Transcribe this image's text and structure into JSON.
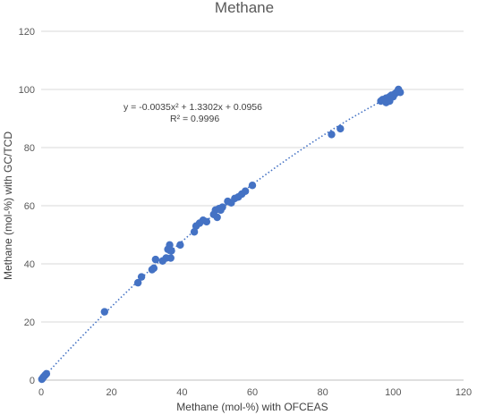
{
  "chart_data": {
    "type": "scatter",
    "title": "Methane",
    "xlabel": "Methane (mol-%) with OFCEAS",
    "ylabel": "Methane (mol-%)  with GC/TCD",
    "xlim": [
      0,
      120
    ],
    "ylim": [
      0,
      120
    ],
    "x_ticks": [
      "0",
      "20",
      "40",
      "60",
      "80",
      "100",
      "120"
    ],
    "y_ticks": [
      "0",
      "20",
      "40",
      "60",
      "80",
      "100",
      "120"
    ],
    "grid": "horizontal",
    "legend": "none",
    "marker_color": "#4472C4",
    "trendline": {
      "type": "polynomial",
      "style": "dotted",
      "equation": "y = -0.0035x² + 1.3302x + 0.0956",
      "r_squared": "R² = 0.9996",
      "coefficients": [
        -0.0035,
        1.3302,
        0.0956
      ],
      "x_range": [
        0,
        102
      ]
    },
    "points": [
      {
        "x": 0.2,
        "y": 0.3
      },
      {
        "x": 0.4,
        "y": 0.6
      },
      {
        "x": 0.6,
        "y": 1.0
      },
      {
        "x": 0.9,
        "y": 1.4
      },
      {
        "x": 1.2,
        "y": 1.8
      },
      {
        "x": 1.5,
        "y": 2.2
      },
      {
        "x": 18.0,
        "y": 23.5
      },
      {
        "x": 27.5,
        "y": 33.5
      },
      {
        "x": 28.5,
        "y": 35.5
      },
      {
        "x": 31.5,
        "y": 38.0
      },
      {
        "x": 32.0,
        "y": 38.5
      },
      {
        "x": 32.5,
        "y": 41.5
      },
      {
        "x": 34.5,
        "y": 41.0
      },
      {
        "x": 35.5,
        "y": 42.0
      },
      {
        "x": 36.0,
        "y": 45.0
      },
      {
        "x": 36.5,
        "y": 46.5
      },
      {
        "x": 37.0,
        "y": 44.5
      },
      {
        "x": 36.8,
        "y": 42.0
      },
      {
        "x": 39.5,
        "y": 46.5
      },
      {
        "x": 43.5,
        "y": 51.0
      },
      {
        "x": 44.0,
        "y": 53.0
      },
      {
        "x": 45.0,
        "y": 54.0
      },
      {
        "x": 46.0,
        "y": 55.0
      },
      {
        "x": 47.0,
        "y": 54.5
      },
      {
        "x": 49.0,
        "y": 57.0
      },
      {
        "x": 49.5,
        "y": 58.5
      },
      {
        "x": 50.0,
        "y": 56.0
      },
      {
        "x": 50.5,
        "y": 59.0
      },
      {
        "x": 51.0,
        "y": 58.5
      },
      {
        "x": 51.5,
        "y": 59.5
      },
      {
        "x": 53.0,
        "y": 61.5
      },
      {
        "x": 54.0,
        "y": 61.0
      },
      {
        "x": 55.0,
        "y": 62.5
      },
      {
        "x": 56.0,
        "y": 63.0
      },
      {
        "x": 57.0,
        "y": 64.0
      },
      {
        "x": 58.0,
        "y": 65.0
      },
      {
        "x": 60.0,
        "y": 67.0
      },
      {
        "x": 82.5,
        "y": 84.5
      },
      {
        "x": 85.0,
        "y": 86.5
      },
      {
        "x": 96.5,
        "y": 96.0
      },
      {
        "x": 97.0,
        "y": 96.5
      },
      {
        "x": 97.5,
        "y": 96.5
      },
      {
        "x": 98.0,
        "y": 97.0
      },
      {
        "x": 98.5,
        "y": 96.5
      },
      {
        "x": 99.0,
        "y": 97.5
      },
      {
        "x": 99.5,
        "y": 98.0
      },
      {
        "x": 100.0,
        "y": 97.5
      },
      {
        "x": 100.5,
        "y": 98.5
      },
      {
        "x": 101.0,
        "y": 99.0
      },
      {
        "x": 101.5,
        "y": 100.0
      },
      {
        "x": 102.0,
        "y": 99.0
      },
      {
        "x": 98.0,
        "y": 95.5
      },
      {
        "x": 99.0,
        "y": 96.0
      }
    ]
  }
}
